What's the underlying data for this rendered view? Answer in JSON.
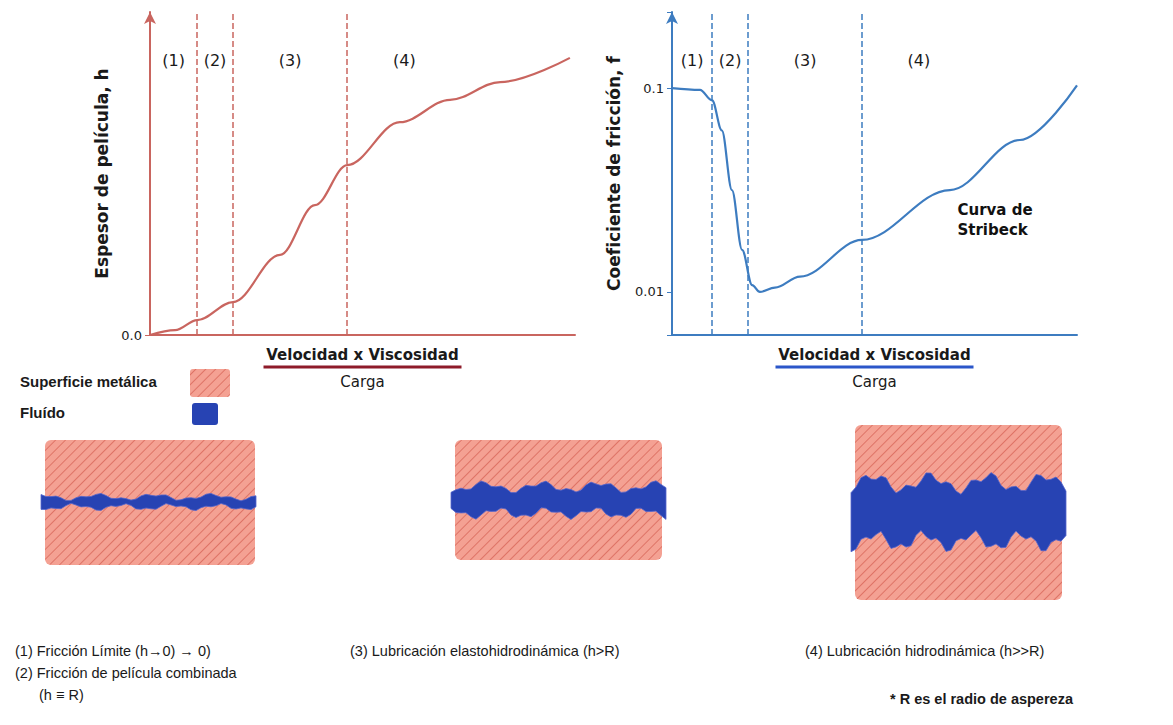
{
  "chart_data": [
    {
      "type": "line",
      "y_label": "Espesor de película, h",
      "x_label": {
        "numerator": "Velocidad x Viscosidad",
        "denominator": "Carga"
      },
      "x": [
        0,
        0.59,
        1.11,
        1.95,
        3.06,
        3.88,
        4.64,
        5.88,
        7.06,
        8.24,
        9.88
      ],
      "values": [
        0,
        0.15,
        0.46,
        1.02,
        2.48,
        4.02,
        5.26,
        6.59,
        7.28,
        7.83,
        8.58
      ],
      "color": "#c9655f",
      "xlim": [
        0,
        10
      ],
      "ylim": [
        0,
        10
      ],
      "yticks": [
        {
          "value": 0,
          "label": "0.0"
        }
      ],
      "tick_labels": "y",
      "grid": false,
      "region_labels": [
        "(1)",
        "(2)",
        "(3)",
        "(4)"
      ],
      "boundaries": [
        1.11,
        1.95,
        4.64
      ]
    },
    {
      "type": "line",
      "log": "y",
      "y_label": "Coeficiente de fricción, f",
      "x_label": {
        "numerator": "Velocidad x Viscosidad",
        "denominator": "Carga"
      },
      "x": [
        0,
        0.69,
        0.99,
        1.23,
        1.48,
        1.73,
        1.98,
        2.17,
        2.54,
        3.16,
        4.69,
        6.86,
        8.59,
        10
      ],
      "values": [
        0.1,
        0.098,
        0.087,
        0.062,
        0.0316,
        0.0161,
        0.0108,
        0.01,
        0.0105,
        0.0119,
        0.018,
        0.0316,
        0.0556,
        0.103
      ],
      "color": "#3d7cc0",
      "xlim": [
        0,
        10
      ],
      "ylim": [
        0.00615,
        0.236
      ],
      "yticks": [
        0.01,
        0.1
      ],
      "tick_labels": "y",
      "grid": false,
      "region_labels": [
        "(1)",
        "(2)",
        "(3)",
        "(4)"
      ],
      "boundaries": [
        0.99,
        1.88,
        4.69
      ],
      "annotation": {
        "text": "Curva de Stribeck",
        "x": 7.0,
        "y": 0.0225
      }
    }
  ],
  "legend_items": [
    {
      "label": "Superficie metálica",
      "color": "#f4a193"
    },
    {
      "label": "Fluído",
      "color": "#2743b3"
    }
  ],
  "captions": [
    [
      "(1) Fricción Límite (h→0) → 0)",
      "(2) Fricción de película combinada",
      "(h ≡ R)"
    ],
    [
      "(3) Lubricación elastohidrodinámica (h>R)"
    ],
    [
      "(4) Lubricación hidrodinámica (h>>R)"
    ]
  ],
  "footnote": "* R es el radio de aspereza"
}
